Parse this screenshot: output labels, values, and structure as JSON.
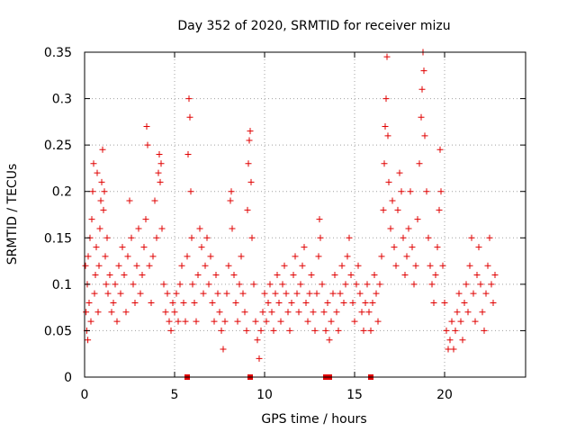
{
  "chart_data": {
    "type": "scatter",
    "title": "Day 352 of 2020, SRMTID for receiver mizu",
    "xlabel": "GPS time / hours",
    "ylabel": "SRMTID / TECUs",
    "xlim": [
      0,
      24.5
    ],
    "ylim": [
      0,
      0.35
    ],
    "x_ticks": [
      0,
      5,
      10,
      15,
      20
    ],
    "x_tick_labels": [
      "0",
      "5",
      "10",
      "15",
      "20"
    ],
    "y_ticks": [
      0,
      0.05,
      0.1,
      0.15,
      0.2,
      0.25,
      0.3,
      0.35
    ],
    "y_tick_labels": [
      "0",
      "0.05",
      "0.1",
      "0.15",
      "0.2",
      "0.25",
      "0.3",
      "0.35"
    ],
    "grid": true,
    "marker": "plus",
    "color": "#e00000",
    "series": [
      {
        "name": "SRMTID",
        "points": [
          [
            0.05,
            0.12
          ],
          [
            0.08,
            0.07
          ],
          [
            0.12,
            0.05
          ],
          [
            0.15,
            0.1
          ],
          [
            0.18,
            0.04
          ],
          [
            0.2,
            0.13
          ],
          [
            0.25,
            0.08
          ],
          [
            0.3,
            0.15
          ],
          [
            0.35,
            0.06
          ],
          [
            0.4,
            0.17
          ],
          [
            0.45,
            0.2
          ],
          [
            0.5,
            0.23
          ],
          [
            0.55,
            0.09
          ],
          [
            0.6,
            0.11
          ],
          [
            0.65,
            0.14
          ],
          [
            0.7,
            0.22
          ],
          [
            0.75,
            0.07
          ],
          [
            0.8,
            0.12
          ],
          [
            0.85,
            0.16
          ],
          [
            0.9,
            0.19
          ],
          [
            0.95,
            0.21
          ],
          [
            1.0,
            0.245
          ],
          [
            1.05,
            0.18
          ],
          [
            1.1,
            0.2
          ],
          [
            1.15,
            0.13
          ],
          [
            1.2,
            0.1
          ],
          [
            1.25,
            0.15
          ],
          [
            1.3,
            0.09
          ],
          [
            1.4,
            0.11
          ],
          [
            1.5,
            0.07
          ],
          [
            1.6,
            0.08
          ],
          [
            1.7,
            0.1
          ],
          [
            1.8,
            0.06
          ],
          [
            1.9,
            0.12
          ],
          [
            2.0,
            0.09
          ],
          [
            2.1,
            0.14
          ],
          [
            2.2,
            0.11
          ],
          [
            2.3,
            0.07
          ],
          [
            2.4,
            0.13
          ],
          [
            2.5,
            0.19
          ],
          [
            2.6,
            0.15
          ],
          [
            2.7,
            0.1
          ],
          [
            2.8,
            0.08
          ],
          [
            2.9,
            0.12
          ],
          [
            3.0,
            0.16
          ],
          [
            3.1,
            0.09
          ],
          [
            3.2,
            0.11
          ],
          [
            3.3,
            0.14
          ],
          [
            3.4,
            0.17
          ],
          [
            3.45,
            0.27
          ],
          [
            3.5,
            0.25
          ],
          [
            3.6,
            0.12
          ],
          [
            3.7,
            0.08
          ],
          [
            3.8,
            0.13
          ],
          [
            3.9,
            0.19
          ],
          [
            4.0,
            0.15
          ],
          [
            4.1,
            0.22
          ],
          [
            4.15,
            0.24
          ],
          [
            4.2,
            0.21
          ],
          [
            4.25,
            0.23
          ],
          [
            4.3,
            0.16
          ],
          [
            4.4,
            0.1
          ],
          [
            4.5,
            0.07
          ],
          [
            4.6,
            0.09
          ],
          [
            4.7,
            0.06
          ],
          [
            4.8,
            0.05
          ],
          [
            4.9,
            0.08
          ],
          [
            5.0,
            0.07
          ],
          [
            5.1,
            0.09
          ],
          [
            5.2,
            0.06
          ],
          [
            5.3,
            0.1
          ],
          [
            5.4,
            0.12
          ],
          [
            5.5,
            0.08
          ],
          [
            5.6,
            0.06
          ],
          [
            5.7,
            0.13
          ],
          [
            5.75,
            0.24
          ],
          [
            5.8,
            0.3
          ],
          [
            5.85,
            0.28
          ],
          [
            5.9,
            0.2
          ],
          [
            5.95,
            0.15
          ],
          [
            6.0,
            0.1
          ],
          [
            6.1,
            0.08
          ],
          [
            6.2,
            0.06
          ],
          [
            6.3,
            0.11
          ],
          [
            6.4,
            0.16
          ],
          [
            6.5,
            0.14
          ],
          [
            6.6,
            0.09
          ],
          [
            6.7,
            0.12
          ],
          [
            6.8,
            0.15
          ],
          [
            6.9,
            0.1
          ],
          [
            7.0,
            0.13
          ],
          [
            7.1,
            0.08
          ],
          [
            7.2,
            0.06
          ],
          [
            7.3,
            0.11
          ],
          [
            7.4,
            0.09
          ],
          [
            7.5,
            0.07
          ],
          [
            7.6,
            0.05
          ],
          [
            7.7,
            0.03
          ],
          [
            7.8,
            0.06
          ],
          [
            7.9,
            0.09
          ],
          [
            8.0,
            0.12
          ],
          [
            8.1,
            0.19
          ],
          [
            8.15,
            0.2
          ],
          [
            8.2,
            0.16
          ],
          [
            8.3,
            0.11
          ],
          [
            8.4,
            0.08
          ],
          [
            8.5,
            0.06
          ],
          [
            8.6,
            0.1
          ],
          [
            8.7,
            0.13
          ],
          [
            8.8,
            0.09
          ],
          [
            8.9,
            0.07
          ],
          [
            9.0,
            0.05
          ],
          [
            9.05,
            0.18
          ],
          [
            9.1,
            0.23
          ],
          [
            9.15,
            0.255
          ],
          [
            9.2,
            0.265
          ],
          [
            9.25,
            0.21
          ],
          [
            9.3,
            0.15
          ],
          [
            9.4,
            0.1
          ],
          [
            9.5,
            0.06
          ],
          [
            9.6,
            0.04
          ],
          [
            9.7,
            0.02
          ],
          [
            9.8,
            0.05
          ],
          [
            9.9,
            0.07
          ],
          [
            10.0,
            0.09
          ],
          [
            10.1,
            0.06
          ],
          [
            10.2,
            0.08
          ],
          [
            10.3,
            0.1
          ],
          [
            10.4,
            0.07
          ],
          [
            10.5,
            0.05
          ],
          [
            10.6,
            0.09
          ],
          [
            10.7,
            0.11
          ],
          [
            10.8,
            0.08
          ],
          [
            10.9,
            0.06
          ],
          [
            11.0,
            0.1
          ],
          [
            11.1,
            0.12
          ],
          [
            11.2,
            0.09
          ],
          [
            11.3,
            0.07
          ],
          [
            11.4,
            0.05
          ],
          [
            11.5,
            0.08
          ],
          [
            11.6,
            0.11
          ],
          [
            11.7,
            0.13
          ],
          [
            11.8,
            0.09
          ],
          [
            11.9,
            0.07
          ],
          [
            12.0,
            0.1
          ],
          [
            12.1,
            0.12
          ],
          [
            12.2,
            0.14
          ],
          [
            12.3,
            0.08
          ],
          [
            12.4,
            0.06
          ],
          [
            12.5,
            0.09
          ],
          [
            12.6,
            0.11
          ],
          [
            12.7,
            0.07
          ],
          [
            12.8,
            0.05
          ],
          [
            12.9,
            0.09
          ],
          [
            13.0,
            0.13
          ],
          [
            13.05,
            0.17
          ],
          [
            13.1,
            0.15
          ],
          [
            13.2,
            0.1
          ],
          [
            13.3,
            0.07
          ],
          [
            13.4,
            0.05
          ],
          [
            13.5,
            0.08
          ],
          [
            13.6,
            0.04
          ],
          [
            13.7,
            0.06
          ],
          [
            13.8,
            0.09
          ],
          [
            13.9,
            0.11
          ],
          [
            14.0,
            0.07
          ],
          [
            14.1,
            0.05
          ],
          [
            14.2,
            0.09
          ],
          [
            14.3,
            0.12
          ],
          [
            14.4,
            0.08
          ],
          [
            14.5,
            0.1
          ],
          [
            14.6,
            0.13
          ],
          [
            14.7,
            0.15
          ],
          [
            14.8,
            0.11
          ],
          [
            14.9,
            0.08
          ],
          [
            15.0,
            0.06
          ],
          [
            15.1,
            0.1
          ],
          [
            15.2,
            0.12
          ],
          [
            15.3,
            0.09
          ],
          [
            15.4,
            0.07
          ],
          [
            15.5,
            0.05
          ],
          [
            15.6,
            0.08
          ],
          [
            15.7,
            0.1
          ],
          [
            15.8,
            0.07
          ],
          [
            15.9,
            0.05
          ],
          [
            16.0,
            0.08
          ],
          [
            16.1,
            0.11
          ],
          [
            16.2,
            0.09
          ],
          [
            16.3,
            0.06
          ],
          [
            16.4,
            0.1
          ],
          [
            16.5,
            0.13
          ],
          [
            16.6,
            0.18
          ],
          [
            16.65,
            0.23
          ],
          [
            16.7,
            0.27
          ],
          [
            16.75,
            0.3
          ],
          [
            16.8,
            0.345
          ],
          [
            16.85,
            0.26
          ],
          [
            16.9,
            0.21
          ],
          [
            17.0,
            0.16
          ],
          [
            17.1,
            0.19
          ],
          [
            17.2,
            0.14
          ],
          [
            17.3,
            0.12
          ],
          [
            17.4,
            0.18
          ],
          [
            17.5,
            0.22
          ],
          [
            17.6,
            0.2
          ],
          [
            17.7,
            0.15
          ],
          [
            17.8,
            0.11
          ],
          [
            17.9,
            0.13
          ],
          [
            18.0,
            0.16
          ],
          [
            18.1,
            0.2
          ],
          [
            18.2,
            0.14
          ],
          [
            18.3,
            0.1
          ],
          [
            18.4,
            0.12
          ],
          [
            18.5,
            0.17
          ],
          [
            18.6,
            0.23
          ],
          [
            18.7,
            0.28
          ],
          [
            18.75,
            0.31
          ],
          [
            18.8,
            0.35
          ],
          [
            18.85,
            0.33
          ],
          [
            18.9,
            0.26
          ],
          [
            19.0,
            0.2
          ],
          [
            19.1,
            0.15
          ],
          [
            19.2,
            0.12
          ],
          [
            19.3,
            0.1
          ],
          [
            19.4,
            0.08
          ],
          [
            19.5,
            0.11
          ],
          [
            19.6,
            0.14
          ],
          [
            19.7,
            0.18
          ],
          [
            19.75,
            0.245
          ],
          [
            19.8,
            0.2
          ],
          [
            19.9,
            0.12
          ],
          [
            20.0,
            0.08
          ],
          [
            20.1,
            0.05
          ],
          [
            20.2,
            0.03
          ],
          [
            20.3,
            0.04
          ],
          [
            20.4,
            0.06
          ],
          [
            20.5,
            0.03
          ],
          [
            20.6,
            0.05
          ],
          [
            20.7,
            0.07
          ],
          [
            20.8,
            0.09
          ],
          [
            20.9,
            0.06
          ],
          [
            21.0,
            0.04
          ],
          [
            21.1,
            0.08
          ],
          [
            21.2,
            0.1
          ],
          [
            21.3,
            0.07
          ],
          [
            21.4,
            0.12
          ],
          [
            21.5,
            0.15
          ],
          [
            21.6,
            0.09
          ],
          [
            21.7,
            0.06
          ],
          [
            21.8,
            0.11
          ],
          [
            21.9,
            0.14
          ],
          [
            22.0,
            0.1
          ],
          [
            22.1,
            0.07
          ],
          [
            22.2,
            0.05
          ],
          [
            22.3,
            0.09
          ],
          [
            22.4,
            0.12
          ],
          [
            22.5,
            0.15
          ],
          [
            22.6,
            0.1
          ],
          [
            22.7,
            0.08
          ],
          [
            22.8,
            0.11
          ]
        ]
      }
    ],
    "gap_markers_x": [
      5.7,
      9.2,
      13.4,
      13.6,
      15.9
    ]
  }
}
